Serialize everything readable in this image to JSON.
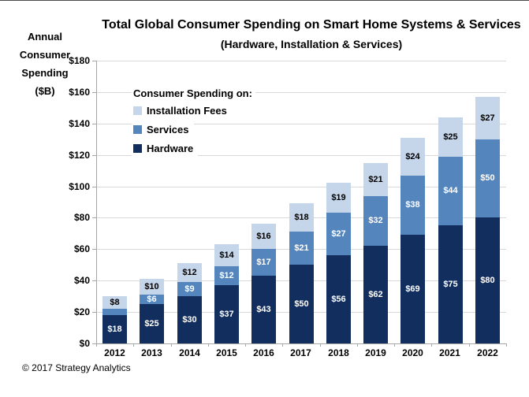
{
  "title": "Total Global Consumer Spending on Smart Home Systems & Services",
  "subtitle": "(Hardware, Installation & Services)",
  "y_axis_title_lines": [
    "Annual",
    "Consumer",
    "Spending",
    "($B)"
  ],
  "footer": "© 2017 Strategy Analytics",
  "legend": {
    "title": "Consumer Spending on:",
    "items": [
      {
        "label": "Installation Fees",
        "color": "#c5d5ea"
      },
      {
        "label": "Services",
        "color": "#5585bd"
      },
      {
        "label": "Hardware",
        "color": "#112e5e"
      }
    ]
  },
  "chart_data": {
    "type": "bar",
    "stacked": true,
    "title": "Total Global Consumer Spending on Smart Home Systems & Services",
    "subtitle": "(Hardware, Installation & Services)",
    "xlabel": "",
    "ylabel": "Annual Consumer Spending ($B)",
    "ylim": [
      0,
      180
    ],
    "ytick_step": 20,
    "ytick_labels": [
      "$0",
      "$20",
      "$40",
      "$60",
      "$80",
      "$100",
      "$120",
      "$140",
      "$160",
      "$180"
    ],
    "grid": true,
    "legend_position": "upper left inside",
    "categories": [
      "2012",
      "2013",
      "2014",
      "2015",
      "2016",
      "2017",
      "2018",
      "2019",
      "2020",
      "2021",
      "2022"
    ],
    "series": [
      {
        "name": "Hardware",
        "color": "#112e5e",
        "label_color": "#ffffff",
        "values": [
          18,
          25,
          30,
          37,
          43,
          50,
          56,
          62,
          69,
          75,
          80
        ],
        "labels": [
          "$18",
          "$25",
          "$30",
          "$37",
          "$43",
          "$50",
          "$56",
          "$62",
          "$69",
          "$75",
          "$80"
        ]
      },
      {
        "name": "Services",
        "color": "#5585bd",
        "label_color": "#ffffff",
        "values": [
          4,
          6,
          9,
          12,
          17,
          21,
          27,
          32,
          38,
          44,
          50
        ],
        "labels": [
          "",
          "$6",
          "$9",
          "$12",
          "$17",
          "$21",
          "$27",
          "$32",
          "$38",
          "$44",
          "$50"
        ]
      },
      {
        "name": "Installation Fees",
        "color": "#c5d5ea",
        "label_color": "#000000",
        "values": [
          8,
          10,
          12,
          14,
          16,
          18,
          19,
          21,
          24,
          25,
          27
        ],
        "labels": [
          "$8",
          "$10",
          "$12",
          "$14",
          "$16",
          "$18",
          "$19",
          "$21",
          "$24",
          "$25",
          "$27"
        ]
      }
    ]
  }
}
